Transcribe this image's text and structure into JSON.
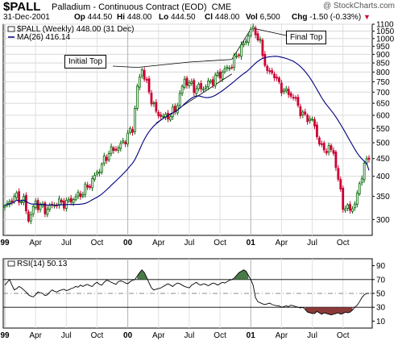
{
  "header": {
    "symbol": "$PALL",
    "description": "Palladium - Continuous Contract (EOD)",
    "exchange": "CME",
    "copyright": "@ StockCharts.com",
    "date": "31-Dec-2001",
    "quote": {
      "open_label": "Op",
      "open": "444.50",
      "high_label": "Hi",
      "high": "448.00",
      "low_label": "Lo",
      "low": "444.50",
      "close_label": "Cl",
      "close": "448.00",
      "volume_label": "Vol",
      "volume": "6,500",
      "change_label": "Chg",
      "change": "-1.50 (-0.33%)"
    }
  },
  "legend": {
    "price": "$PALL (Weekly) 448.00 (31 Dec)",
    "ma": "MA(26) 416.14",
    "rsi": "RSI(14) 50.13"
  },
  "annotations": {
    "initial_top": "Initial Top",
    "final_top": "Final Top"
  },
  "colors": {
    "up_bar": "#006600",
    "down_bar": "#cc0033",
    "ma_line": "#000080",
    "rsi_overbought_fill": "#4a7a4a",
    "rsi_oversold_fill": "#8b3a3a"
  },
  "chart_data": [
    {
      "type": "candlestick",
      "title": "Palladium - Continuous Contract (EOD)",
      "period": "weekly",
      "y_scale": "log",
      "ylim": [
        270,
        1100
      ],
      "y_ticks": [
        300,
        350,
        400,
        450,
        500,
        550,
        600,
        650,
        700,
        750,
        800,
        850,
        900,
        950,
        1000,
        1050,
        1100
      ],
      "x_ticks": [
        "99",
        "Apr",
        "Jul",
        "Oct",
        "00",
        "Apr",
        "Jul",
        "Oct",
        "01",
        "Apr",
        "Jul",
        "Oct"
      ],
      "x_major": [
        "99",
        "00",
        "01"
      ],
      "close_anchors": [
        [
          0,
          325
        ],
        [
          4,
          350
        ],
        [
          8,
          340
        ],
        [
          10,
          300
        ],
        [
          13,
          335
        ],
        [
          17,
          320
        ],
        [
          22,
          335
        ],
        [
          26,
          335
        ],
        [
          32,
          355
        ],
        [
          36,
          380
        ],
        [
          40,
          420
        ],
        [
          44,
          470
        ],
        [
          49,
          490
        ],
        [
          54,
          550
        ],
        [
          56,
          720
        ],
        [
          58,
          820
        ],
        [
          61,
          700
        ],
        [
          64,
          610
        ],
        [
          68,
          590
        ],
        [
          72,
          620
        ],
        [
          76,
          760
        ],
        [
          80,
          720
        ],
        [
          84,
          720
        ],
        [
          88,
          760
        ],
        [
          92,
          800
        ],
        [
          96,
          840
        ],
        [
          99,
          920
        ],
        [
          101,
          960
        ],
        [
          104,
          1060
        ],
        [
          106,
          1050
        ],
        [
          108,
          960
        ],
        [
          111,
          800
        ],
        [
          114,
          790
        ],
        [
          116,
          730
        ],
        [
          119,
          700
        ],
        [
          122,
          680
        ],
        [
          126,
          600
        ],
        [
          130,
          580
        ],
        [
          134,
          480
        ],
        [
          137,
          480
        ],
        [
          139,
          470
        ],
        [
          141,
          390
        ],
        [
          143,
          330
        ],
        [
          145,
          320
        ],
        [
          148,
          330
        ],
        [
          150,
          380
        ],
        [
          152,
          430
        ],
        [
          154,
          448
        ]
      ],
      "series": [
        {
          "name": "$PALL (Weekly)",
          "last": 448.0
        },
        {
          "name": "MA(26)",
          "last": 416.14
        }
      ]
    },
    {
      "type": "line",
      "title": "RSI(14)",
      "ylim": [
        0,
        100
      ],
      "y_ticks": [
        10,
        30,
        50,
        70,
        90
      ],
      "reference_lines": [
        30,
        50,
        70
      ],
      "last": 50.13,
      "values": [
        62,
        66,
        70,
        62,
        55,
        57,
        60,
        58,
        55,
        52,
        48,
        46,
        45,
        48,
        52,
        50,
        47,
        48,
        52,
        55,
        53,
        52,
        54,
        55,
        56,
        54,
        55,
        57,
        58,
        60,
        59,
        62,
        60,
        62,
        63,
        61,
        60,
        64,
        66,
        63,
        62,
        66,
        69,
        68,
        66,
        63,
        67,
        68,
        67,
        65,
        64,
        67,
        69,
        70,
        75,
        80,
        84,
        80,
        73,
        65,
        58,
        55,
        56,
        57,
        58,
        60,
        62,
        64,
        62,
        60,
        63,
        65,
        64,
        62,
        60,
        58,
        62,
        64,
        66,
        63,
        62,
        64,
        63,
        61,
        63,
        65,
        64,
        62,
        64,
        66,
        65,
        67,
        69,
        70,
        72,
        76,
        80,
        82,
        84,
        82,
        76,
        70,
        62,
        44,
        38,
        35,
        34,
        35,
        36,
        34,
        33,
        32,
        32,
        30,
        31,
        32,
        31,
        33,
        32,
        31,
        30,
        29,
        30,
        27,
        23,
        22,
        21,
        21,
        24,
        22,
        20,
        22,
        21,
        20,
        19,
        21,
        22,
        20,
        21,
        23,
        22,
        23,
        26,
        30,
        33,
        38,
        44,
        48,
        50,
        50
      ]
    }
  ]
}
